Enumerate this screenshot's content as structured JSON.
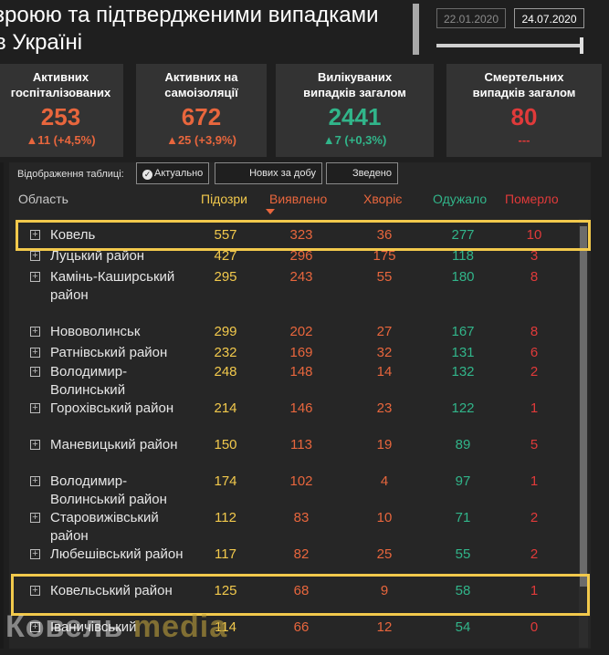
{
  "header": {
    "title_line1": "зроюю та підтвердженими випадками",
    "title_line2": "в Україні",
    "date_start": "22.01.2020",
    "date_end": "24.07.2020"
  },
  "cards": [
    {
      "label": "Активних\nгоспіталізованих",
      "value": "253",
      "delta": "▲11 (+4,5%)",
      "value_color": "#e8663d",
      "delta_color": "#e8663d"
    },
    {
      "label": "Активних на\nсамоізоляції",
      "value": "672",
      "delta": "▲25 (+3,9%)",
      "value_color": "#e8663d",
      "delta_color": "#e8663d"
    },
    {
      "label": "Вилікуваних\nвипадків загалом",
      "value": "2441",
      "delta": "▲7 (+0,3%)",
      "value_color": "#31b58a",
      "delta_color": "#31b58a"
    },
    {
      "label": "Смертельних\nвипадків загалом",
      "value": "80",
      "delta": "---",
      "value_color": "#e03a3a",
      "delta_color": "#e03a3a"
    }
  ],
  "table": {
    "view_label": "Відображення таблиці:",
    "view_buttons": [
      "Актуально",
      "Нових за добу",
      "Зведено"
    ],
    "columns": {
      "region": "Область",
      "suspected": "Підозри",
      "detected": "Виявлено",
      "sick": "Хворіє",
      "recovered": "Одужало",
      "dead": "Померло"
    },
    "rows": [
      {
        "name": "Ковель",
        "suspected": "557",
        "detected": "323",
        "sick": "36",
        "recovered": "277",
        "dead": "10"
      },
      {
        "name": "Луцький район",
        "suspected": "427",
        "detected": "296",
        "sick": "175",
        "recovered": "118",
        "dead": "3"
      },
      {
        "name": "Камінь-Каширський район",
        "suspected": "295",
        "detected": "243",
        "sick": "55",
        "recovered": "180",
        "dead": "8"
      },
      {
        "name": "Нововолинськ",
        "suspected": "299",
        "detected": "202",
        "sick": "27",
        "recovered": "167",
        "dead": "8"
      },
      {
        "name": "Ратнівський район",
        "suspected": "232",
        "detected": "169",
        "sick": "32",
        "recovered": "131",
        "dead": "6"
      },
      {
        "name": "Володимир-Волинський",
        "suspected": "248",
        "detected": "148",
        "sick": "14",
        "recovered": "132",
        "dead": "2"
      },
      {
        "name": "Горохівський район",
        "suspected": "214",
        "detected": "146",
        "sick": "23",
        "recovered": "122",
        "dead": "1"
      },
      {
        "name": "Маневицький район",
        "suspected": "150",
        "detected": "113",
        "sick": "19",
        "recovered": "89",
        "dead": "5"
      },
      {
        "name": "Володимир-Волинський район",
        "suspected": "174",
        "detected": "102",
        "sick": "4",
        "recovered": "97",
        "dead": "1"
      },
      {
        "name": "Старовижівський район",
        "suspected": "112",
        "detected": "83",
        "sick": "10",
        "recovered": "71",
        "dead": "2"
      },
      {
        "name": "Любешівський район",
        "suspected": "117",
        "detected": "82",
        "sick": "25",
        "recovered": "55",
        "dead": "2"
      },
      {
        "name": "Ковельський район",
        "suspected": "125",
        "detected": "68",
        "sick": "9",
        "recovered": "58",
        "dead": "1"
      },
      {
        "name": "Іваничівський",
        "suspected": "114",
        "detected": "66",
        "sick": "12",
        "recovered": "54",
        "dead": "0"
      }
    ]
  },
  "watermark": {
    "part1": "Ковель ",
    "part2": "media"
  }
}
